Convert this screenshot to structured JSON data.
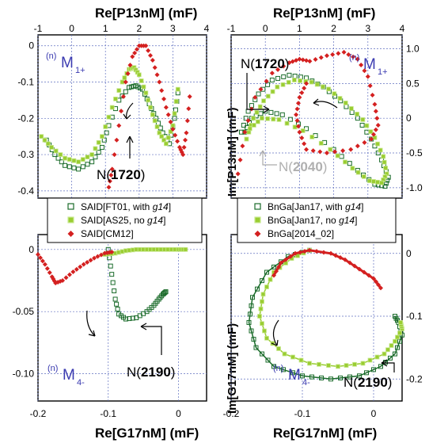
{
  "titles": {
    "top_x": "Re[P13nM]   (mF)",
    "bottom_x": "Re[G17nM]   (mF)",
    "y_top_right": "Im[P13nM]   (mF)",
    "y_bottom_right": "Im[G17nM]   (mF)"
  },
  "labels": {
    "tl_sup": "(n)",
    "tl_main": "M",
    "tl_sub": "1+",
    "tr_sup": "(n)",
    "tr_main": "M",
    "tr_sub": "1+",
    "bl_sup": "(n)",
    "bl_main": "M",
    "bl_sub": "4-",
    "br_sup": "(n)",
    "br_main": "M",
    "br_sub": "4-"
  },
  "annotations": {
    "tl_N_prefix": "N(",
    "tl_N_val": "1720",
    "tl_N_suffix": ")",
    "tr_N1_prefix": "N(",
    "tr_N1_val": "1720",
    "tr_N1_suffix": ")",
    "tr_N2_prefix": "N(",
    "tr_N2_val": "2040",
    "tr_N2_suffix": ")",
    "bl_N_prefix": "N(",
    "bl_N_val": "2190",
    "bl_N_suffix": ")",
    "br_N_prefix": "N(",
    "br_N_val": "2190",
    "br_N_suffix": ")"
  },
  "legend_left": [
    {
      "pre": "SAID[FT01, with ",
      "ital": "g14",
      "post": "]",
      "color": "#1a6b2a",
      "marker": "square"
    },
    {
      "pre": "SAID[AS25, no ",
      "ital": "g14",
      "post": "]",
      "color": "#9acd32",
      "marker": "square-filled"
    },
    {
      "pre": "SAID[CM12]",
      "ital": "",
      "post": "",
      "color": "#d42020",
      "marker": "diamond"
    }
  ],
  "legend_right": [
    {
      "pre": "BnGa[Jan17, with ",
      "ital": "g14",
      "post": "]",
      "color": "#1a6b2a",
      "marker": "square"
    },
    {
      "pre": "BnGa[Jan17, no ",
      "ital": "g14",
      "post": "]",
      "color": "#9acd32",
      "marker": "square-filled"
    },
    {
      "pre": "BnGa[2014_02]",
      "ital": "",
      "post": "",
      "color": "#d42020",
      "marker": "diamond"
    }
  ],
  "ticks": {
    "top_x": [
      "-1",
      "0",
      "1",
      "2",
      "3",
      "4"
    ],
    "bottom_x": [
      "-0.2",
      "-0.1",
      "0"
    ],
    "tl_y": [
      "0",
      "-0.1",
      "-0.2",
      "-0.3",
      "-0.4"
    ],
    "tr_y": [
      "1.0",
      "0.5",
      "0",
      "-0.5",
      "-1.0"
    ],
    "bl_y": [
      "0",
      "-0.05",
      "-0.10"
    ],
    "br_y": [
      "0",
      "-0.1",
      "-0.2"
    ]
  },
  "chart_data": [
    {
      "type": "scatter",
      "panel": "top-left",
      "xlabel": "Re[P13nM] (mF)",
      "xlim": [
        -1,
        4
      ],
      "ylim": [
        -0.42,
        0.03
      ],
      "series": [
        {
          "name": "SAID[FT01, with g14]",
          "color": "#1a6b2a",
          "x": [
            -0.75,
            -0.5,
            -0.2,
            0.2,
            0.6,
            0.9,
            1.1,
            1.4,
            1.7,
            1.9,
            2.1,
            2.3,
            2.5,
            2.7,
            2.9,
            3.05,
            3.15
          ],
          "y": [
            -0.26,
            -0.3,
            -0.33,
            -0.34,
            -0.32,
            -0.28,
            -0.22,
            -0.15,
            -0.115,
            -0.11,
            -0.12,
            -0.16,
            -0.2,
            -0.24,
            -0.27,
            -0.2,
            -0.13
          ]
        },
        {
          "name": "SAID[AS25, no g14]",
          "color": "#9acd32",
          "x": [
            -0.9,
            -0.6,
            -0.2,
            0.2,
            0.6,
            0.9,
            1.2,
            1.5,
            1.7,
            1.85,
            2.0,
            2.2,
            2.4,
            2.6,
            2.8,
            3.0,
            3.15
          ],
          "y": [
            -0.25,
            -0.28,
            -0.31,
            -0.32,
            -0.3,
            -0.25,
            -0.17,
            -0.1,
            -0.065,
            -0.06,
            -0.08,
            -0.13,
            -0.19,
            -0.24,
            -0.27,
            -0.22,
            -0.12
          ]
        },
        {
          "name": "SAID[CM12]",
          "color": "#d42020",
          "x": [
            1.1,
            1.2,
            1.4,
            1.6,
            1.8,
            2.0,
            2.2,
            2.4,
            2.6,
            2.8,
            3.0,
            3.2,
            3.3,
            3.4,
            3.5
          ],
          "y": [
            -0.39,
            -0.34,
            -0.22,
            -0.1,
            -0.03,
            0.0,
            0.0,
            -0.04,
            -0.1,
            -0.17,
            -0.23,
            -0.28,
            -0.3,
            -0.24,
            -0.14
          ]
        }
      ]
    },
    {
      "type": "scatter",
      "panel": "top-right",
      "xlabel": "Re[P13nM] (mF)",
      "ylabel": "Im[P13nM] (mF)",
      "xlim": [
        -1,
        4
      ],
      "ylim": [
        -1.15,
        1.2
      ],
      "series": [
        {
          "name": "BnGa[Jan17, with g14]",
          "color": "#1a6b2a",
          "x": [
            -0.7,
            -0.5,
            -0.2,
            0.2,
            0.7,
            1.2,
            1.7,
            2.2,
            2.7,
            3.1,
            3.4,
            3.6,
            3.5,
            3.2,
            2.7,
            2.0,
            1.2,
            0.5,
            0.0,
            -0.4,
            -0.6
          ],
          "y": [
            -0.2,
            0.1,
            0.35,
            0.55,
            0.62,
            0.58,
            0.45,
            0.25,
            0.0,
            -0.3,
            -0.6,
            -0.85,
            -0.98,
            -0.95,
            -0.75,
            -0.45,
            -0.15,
            0.05,
            0.1,
            0.0,
            -0.2
          ]
        },
        {
          "name": "BnGa[Jan17, no g14]",
          "color": "#9acd32",
          "x": [
            -0.55,
            -0.35,
            -0.05,
            0.35,
            0.85,
            1.35,
            1.85,
            2.35,
            2.85,
            3.2,
            3.45,
            3.55,
            3.4,
            3.05,
            2.55,
            1.9,
            1.1,
            0.4,
            -0.1,
            -0.45
          ],
          "y": [
            -0.3,
            0.0,
            0.25,
            0.45,
            0.55,
            0.52,
            0.42,
            0.22,
            -0.02,
            -0.28,
            -0.55,
            -0.8,
            -0.93,
            -0.9,
            -0.72,
            -0.45,
            -0.18,
            -0.02,
            0.0,
            -0.15
          ]
        },
        {
          "name": "BnGa[2014_02]",
          "color": "#d42020",
          "x": [
            -0.8,
            -0.6,
            -0.3,
            0.2,
            0.7,
            1.0,
            1.3,
            1.8,
            2.3,
            2.7,
            3.0,
            3.2,
            3.3,
            3.1,
            2.5,
            1.8,
            1.2,
            1.0,
            0.9,
            1.0,
            1.2
          ],
          "y": [
            -0.8,
            -0.2,
            0.3,
            0.65,
            0.8,
            0.85,
            0.82,
            0.9,
            0.95,
            0.85,
            0.6,
            0.2,
            -0.1,
            -0.3,
            -0.45,
            -0.5,
            -0.45,
            -0.2,
            0.05,
            0.3,
            0.5
          ]
        }
      ]
    },
    {
      "type": "scatter",
      "panel": "bottom-left",
      "xlabel": "Re[G17nM] (mF)",
      "xlim": [
        -0.2,
        0.04
      ],
      "ylim": [
        -0.122,
        0.012
      ],
      "series": [
        {
          "name": "SAID[FT01, with g14]",
          "color": "#1a6b2a",
          "x": [
            -0.1,
            -0.095,
            -0.09,
            -0.085,
            -0.075,
            -0.06,
            -0.045,
            -0.035,
            -0.028,
            -0.022,
            -0.018
          ],
          "y": [
            0.0,
            -0.02,
            -0.04,
            -0.052,
            -0.056,
            -0.055,
            -0.05,
            -0.045,
            -0.04,
            -0.036,
            -0.034
          ]
        },
        {
          "name": "SAID[AS25, no g14]",
          "color": "#9acd32",
          "x": [
            -0.105,
            -0.09,
            -0.075,
            -0.06,
            -0.045,
            -0.03,
            -0.015,
            0.0,
            0.01
          ],
          "y": [
            -0.004,
            -0.003,
            -0.001,
            0.0,
            0.0,
            0.0,
            0.0,
            0.0,
            0.0
          ]
        },
        {
          "name": "SAID[CM12]",
          "color": "#d42020",
          "x": [
            -0.2,
            -0.19,
            -0.18,
            -0.175,
            -0.165,
            -0.15,
            -0.135,
            -0.12,
            -0.105,
            -0.095
          ],
          "y": [
            -0.004,
            -0.012,
            -0.022,
            -0.027,
            -0.025,
            -0.018,
            -0.012,
            -0.007,
            -0.003,
            -0.002
          ]
        }
      ]
    },
    {
      "type": "line",
      "panel": "bottom-right",
      "xlabel": "Re[G17nM] (mF)",
      "ylabel": "Im[G17nM] (mF)",
      "xlim": [
        -0.2,
        0.04
      ],
      "ylim": [
        -0.235,
        0.03
      ],
      "series": [
        {
          "name": "BnGa[Jan17, with g14]",
          "color": "#1a6b2a",
          "x": [
            -0.09,
            -0.12,
            -0.15,
            -0.17,
            -0.175,
            -0.165,
            -0.14,
            -0.1,
            -0.06,
            -0.02,
            0.01,
            0.03,
            0.04,
            0.035,
            0.03
          ],
          "y": [
            0.005,
            -0.005,
            -0.03,
            -0.07,
            -0.11,
            -0.15,
            -0.18,
            -0.195,
            -0.2,
            -0.195,
            -0.18,
            -0.16,
            -0.13,
            -0.11,
            -0.1
          ]
        },
        {
          "name": "BnGa[Jan17, no g14]",
          "color": "#9acd32",
          "x": [
            -0.09,
            -0.115,
            -0.14,
            -0.155,
            -0.16,
            -0.15,
            -0.125,
            -0.09,
            -0.05,
            -0.015,
            0.015,
            0.03,
            0.04,
            0.038
          ],
          "y": [
            0.005,
            -0.008,
            -0.03,
            -0.065,
            -0.1,
            -0.135,
            -0.16,
            -0.175,
            -0.18,
            -0.175,
            -0.16,
            -0.14,
            -0.12,
            -0.11
          ]
        },
        {
          "name": "BnGa[2014_02]",
          "color": "#d42020",
          "x": [
            -0.14,
            -0.13,
            -0.11,
            -0.09,
            -0.06,
            -0.04,
            -0.02,
            0.0,
            0.01
          ],
          "y": [
            -0.035,
            -0.015,
            0.0,
            0.005,
            0.0,
            -0.01,
            -0.025,
            -0.04,
            -0.055
          ]
        }
      ]
    }
  ]
}
